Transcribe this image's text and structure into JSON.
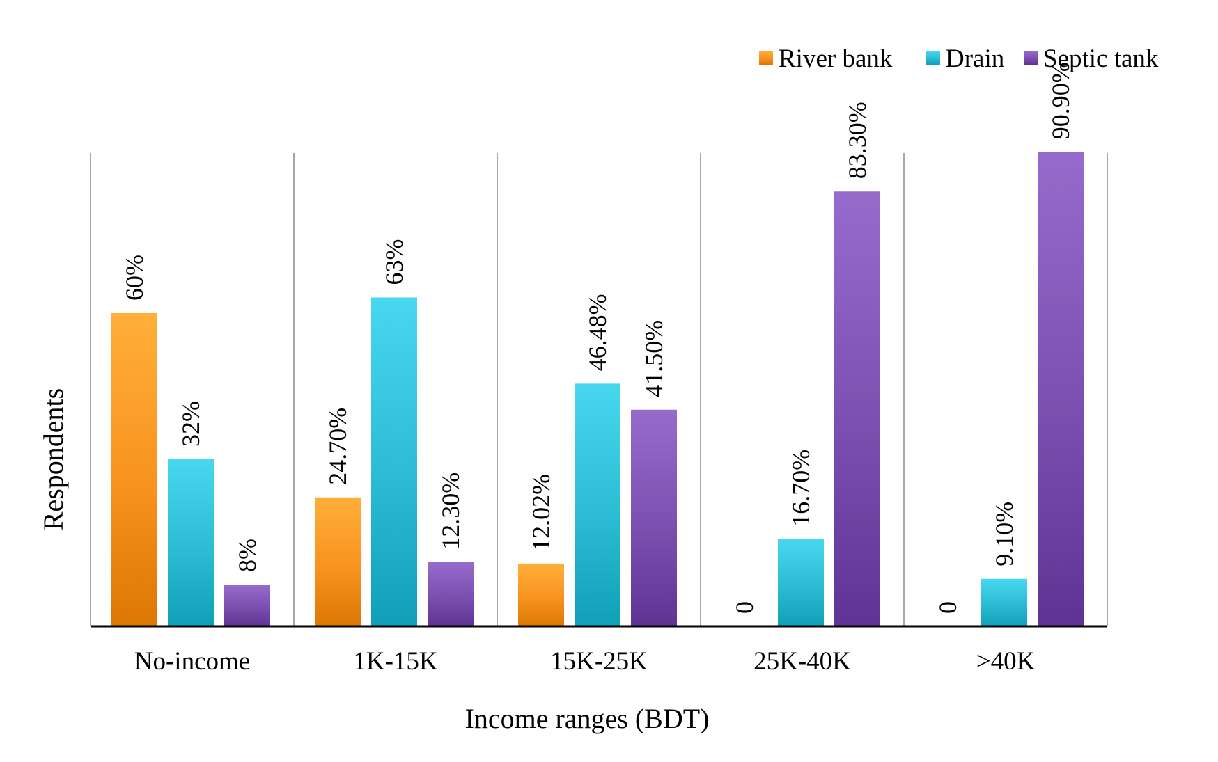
{
  "chart_data": {
    "type": "bar",
    "title": "",
    "xlabel": "Income ranges (BDT)",
    "ylabel": "Respondents",
    "categories": [
      "No-income",
      "1K-15K",
      "15K-25K",
      "25K-40K",
      ">40K"
    ],
    "series": [
      {
        "name": "River bank",
        "color": "#f7931e",
        "values": [
          60,
          24.7,
          12.02,
          0,
          0
        ],
        "labels": [
          "60%",
          "24.70%",
          "12.02%",
          "0",
          "0"
        ]
      },
      {
        "name": "Drain",
        "color": "#2bbcd4",
        "values": [
          32,
          63,
          46.48,
          16.7,
          9.1
        ],
        "labels": [
          "32%",
          "63%",
          "46.48%",
          "16.70%",
          "9.10%"
        ]
      },
      {
        "name": "Septic tank",
        "color": "#7b4fb0",
        "values": [
          8,
          12.3,
          41.5,
          83.3,
          90.9
        ],
        "labels": [
          "8%",
          "12.30%",
          "41.50%",
          "83.30%",
          "90.90%"
        ]
      }
    ],
    "ylim": [
      0,
      100
    ],
    "grid": false,
    "category_separators": true,
    "legend_position": "top-right",
    "data_labels_rotated": true
  }
}
